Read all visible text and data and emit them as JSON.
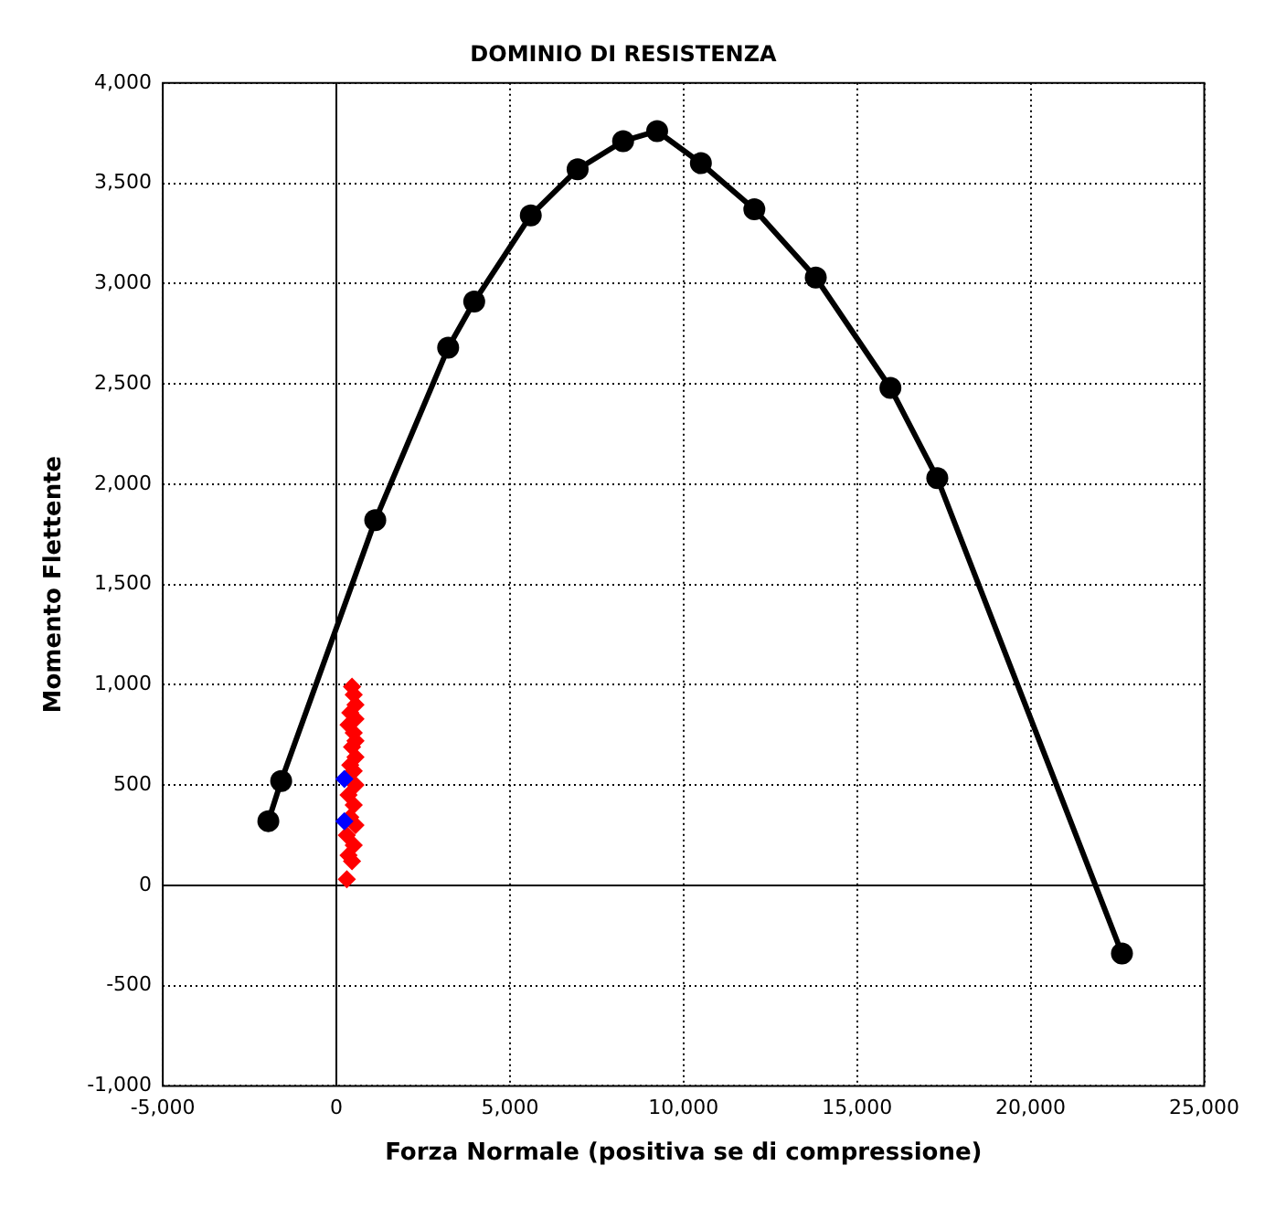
{
  "chart_data": {
    "type": "scatter",
    "title": "DOMINIO DI RESISTENZA",
    "xlabel": "Forza Normale (positiva se di compressione)",
    "ylabel": "Momento Flettente",
    "xlim": [
      -5000,
      25000
    ],
    "xticks": [
      {
        "value": -5000,
        "label": "-5,000"
      },
      0,
      {
        "value": 5000,
        "label": "5,000"
      },
      {
        "value": 10000,
        "label": "10,000"
      },
      {
        "value": 15000,
        "label": "15,000"
      },
      {
        "value": 20000,
        "label": "20,000"
      },
      {
        "value": 25000,
        "label": "25,000"
      }
    ],
    "ylim": [
      -1000,
      4000
    ],
    "yticks": [
      {
        "value": -1000,
        "label": "-1,000"
      },
      -500,
      0,
      500,
      {
        "value": 1000,
        "label": "1,000"
      },
      {
        "value": 1500,
        "label": "1,500"
      },
      {
        "value": 2000,
        "label": "2,000"
      },
      {
        "value": 2500,
        "label": "2,500"
      },
      {
        "value": 3000,
        "label": "3,000"
      },
      {
        "value": 3500,
        "label": "3,500"
      },
      {
        "value": 4000,
        "label": "4,000"
      }
    ],
    "grid": true,
    "series": [
      {
        "type": "line",
        "color": "#000000",
        "marker": "circle",
        "x": [
          -1960,
          -1590,
          1120,
          3220,
          3970,
          5600,
          6950,
          8260,
          9240,
          10500,
          12040,
          13810,
          15960,
          17310,
          22630
        ],
        "values": [
          320,
          520,
          1820,
          2680,
          2910,
          3340,
          3570,
          3710,
          3760,
          3600,
          3370,
          3030,
          2480,
          2030,
          -340
        ]
      },
      {
        "type": "scatter",
        "color": "#ff0000",
        "marker": "diamond",
        "x": [
          450,
          500,
          550,
          400,
          550,
          350,
          500,
          550,
          450,
          550,
          400,
          500,
          550,
          350,
          500,
          400,
          550,
          300,
          500,
          350,
          450,
          300
        ],
        "values": [
          990,
          950,
          900,
          860,
          830,
          800,
          760,
          720,
          690,
          640,
          600,
          570,
          500,
          450,
          400,
          340,
          300,
          250,
          200,
          150,
          120,
          30
        ]
      },
      {
        "type": "scatter",
        "color": "#0000ff",
        "marker": "diamond",
        "x": [
          230,
          230
        ],
        "values": [
          530,
          320
        ]
      }
    ]
  }
}
